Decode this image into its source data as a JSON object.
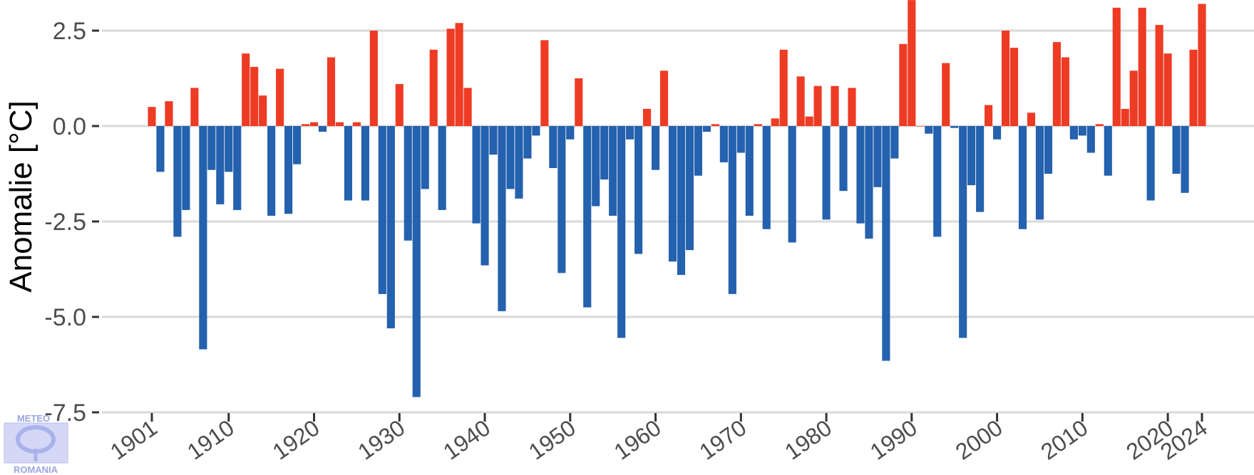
{
  "chart_data": {
    "type": "bar",
    "ylabel": "Anomalie [°C]",
    "xlabel": "",
    "title": "",
    "ylim": [
      -7.5,
      3.1
    ],
    "xlim": [
      1901,
      2024
    ],
    "yticks": [
      2.5,
      0,
      -2.5,
      -5,
      -7.5
    ],
    "ytick_labels": [
      "2.5",
      "0.0",
      "-2.5",
      "-5.0",
      "-7.5"
    ],
    "xticks": [
      1901,
      1910,
      1920,
      1930,
      1940,
      1950,
      1960,
      1970,
      1980,
      1990,
      2000,
      2010,
      2020,
      2024
    ],
    "xtick_labels": [
      "1901",
      "1910",
      "1920",
      "1930",
      "1940",
      "1950",
      "1960",
      "1970",
      "1980",
      "1990",
      "2000",
      "2010",
      "2020",
      "2024"
    ],
    "grid": "horizontal",
    "colors": {
      "positive": "#ee3b24",
      "negative": "#2461ae",
      "grid": "#d9d9d9",
      "axis": "#333333"
    },
    "x": [
      1901,
      1902,
      1903,
      1904,
      1905,
      1906,
      1907,
      1908,
      1909,
      1910,
      1911,
      1912,
      1913,
      1914,
      1915,
      1916,
      1917,
      1918,
      1919,
      1920,
      1921,
      1922,
      1923,
      1924,
      1925,
      1926,
      1927,
      1928,
      1929,
      1930,
      1931,
      1932,
      1933,
      1934,
      1935,
      1936,
      1937,
      1938,
      1939,
      1940,
      1941,
      1942,
      1943,
      1944,
      1945,
      1946,
      1947,
      1948,
      1949,
      1950,
      1951,
      1952,
      1953,
      1954,
      1955,
      1956,
      1957,
      1958,
      1959,
      1960,
      1961,
      1962,
      1963,
      1964,
      1965,
      1966,
      1967,
      1968,
      1969,
      1970,
      1971,
      1972,
      1973,
      1974,
      1975,
      1976,
      1977,
      1978,
      1979,
      1980,
      1981,
      1982,
      1983,
      1984,
      1985,
      1986,
      1987,
      1988,
      1989,
      1990,
      1991,
      1992,
      1993,
      1994,
      1995,
      1996,
      1997,
      1998,
      1999,
      2000,
      2001,
      2002,
      2003,
      2004,
      2005,
      2006,
      2007,
      2008,
      2009,
      2010,
      2011,
      2012,
      2013,
      2014,
      2015,
      2016,
      2017,
      2018,
      2019,
      2020,
      2021,
      2022,
      2023,
      2024
    ],
    "values": [
      0.5,
      -1.2,
      0.65,
      -2.9,
      -2.2,
      1.0,
      -5.85,
      -1.15,
      -2.05,
      -1.2,
      -2.2,
      1.9,
      1.55,
      0.8,
      -2.35,
      1.5,
      -2.3,
      -1.0,
      0.05,
      0.1,
      -0.15,
      1.8,
      0.1,
      -1.95,
      0.1,
      -1.95,
      2.5,
      -4.4,
      -5.3,
      1.1,
      -3.0,
      -7.1,
      -1.65,
      2.0,
      -2.2,
      2.55,
      2.7,
      1.0,
      -2.55,
      -3.65,
      -0.75,
      -4.85,
      -1.65,
      -1.9,
      -0.85,
      -0.25,
      2.25,
      -1.1,
      -3.85,
      -0.35,
      1.25,
      -4.75,
      -2.1,
      -1.4,
      -2.35,
      -5.55,
      -0.35,
      -3.35,
      0.45,
      -1.15,
      1.45,
      -3.55,
      -3.9,
      -3.25,
      -1.3,
      -0.15,
      0.05,
      -0.95,
      -4.4,
      -0.7,
      -2.35,
      0.05,
      -2.7,
      0.2,
      2.0,
      -3.05,
      1.3,
      0.25,
      1.05,
      -2.45,
      1.05,
      -1.7,
      1.0,
      -2.55,
      -2.95,
      -1.6,
      -6.15,
      -0.85,
      2.15,
      3.3,
      0.0,
      -0.2,
      -2.9,
      1.65,
      -0.05,
      -5.55,
      -1.55,
      -2.25,
      0.55,
      -0.35,
      2.5,
      2.05,
      -2.7,
      0.35,
      -2.45,
      -1.25,
      2.2,
      1.8,
      -0.35,
      -0.25,
      -0.7,
      0.05,
      -1.3,
      3.1,
      0.45,
      1.45,
      3.1,
      -1.95,
      2.65,
      1.9,
      -1.25,
      -1.75,
      2.0,
      3.2
    ]
  },
  "logo": {
    "top_text": "METEO",
    "bottom_text": "ROMANIA"
  }
}
